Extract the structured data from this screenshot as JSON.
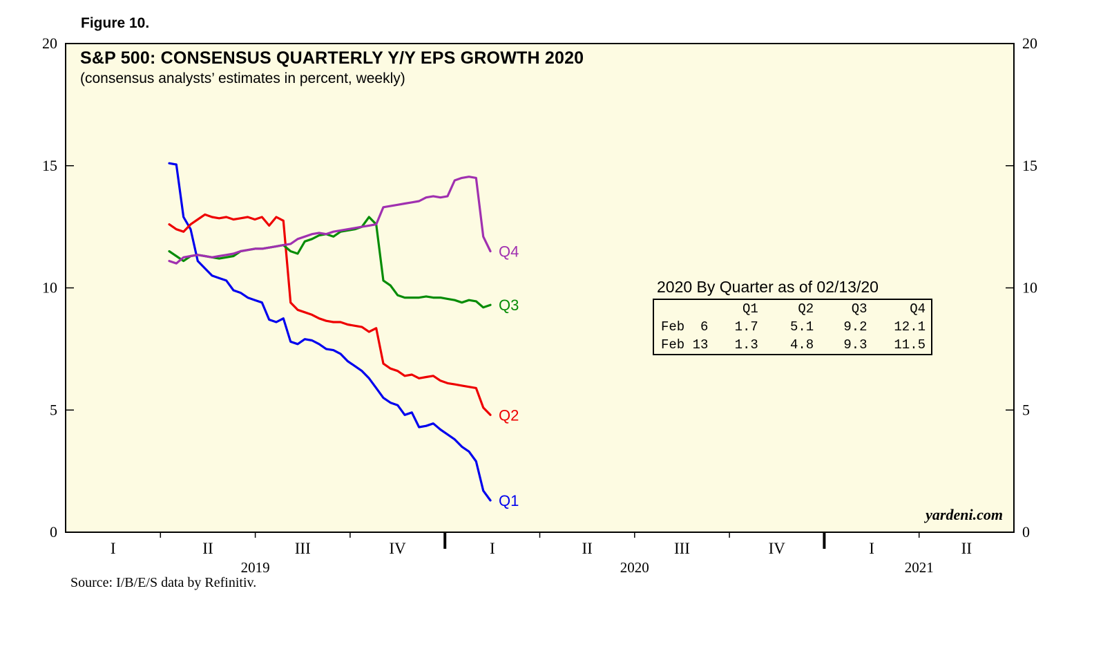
{
  "figure_label": "Figure 10.",
  "chart": {
    "title": "S&P 500: CONSENSUS QUARTERLY Y/Y EPS GROWTH 2020",
    "subtitle": "(consensus analysts’ estimates in percent, weekly)",
    "watermark": "yardeni.com",
    "source": "Source: I/B/E/S data by Refinitiv.",
    "plot_background": "#FDFBE2",
    "axis_color": "#000000"
  },
  "chart_data": {
    "type": "line",
    "title": "S&P 500: CONSENSUS QUARTERLY Y/Y EPS GROWTH 2020",
    "subtitle": "(consensus analysts’ estimates in percent, weekly)",
    "ylabel": "",
    "ylim": [
      0,
      20
    ],
    "yticks": [
      0,
      5,
      10,
      15,
      20
    ],
    "grid": false,
    "legend_position": "end-of-line-labels",
    "x_axis": {
      "quarter_labels": [
        "I",
        "II",
        "III",
        "IV",
        "I",
        "II",
        "III",
        "IV",
        "I",
        "II"
      ],
      "year_labels": [
        {
          "label": "2019",
          "span": [
            0,
            4
          ]
        },
        {
          "label": "2020",
          "span": [
            4,
            8
          ]
        },
        {
          "label": "2021",
          "span": [
            8,
            10
          ]
        }
      ]
    },
    "x_unit": "weekly observations, Apr 2019 through Feb 13 2020",
    "series": [
      {
        "name": "Q1",
        "color": "#0000EE",
        "values": [
          15.1,
          15.05,
          12.9,
          12.4,
          11.1,
          10.8,
          10.5,
          10.4,
          10.3,
          9.9,
          9.8,
          9.6,
          9.5,
          9.4,
          8.7,
          8.6,
          8.75,
          7.8,
          7.7,
          7.9,
          7.85,
          7.7,
          7.5,
          7.45,
          7.3,
          7.0,
          6.8,
          6.6,
          6.3,
          5.9,
          5.5,
          5.3,
          5.2,
          4.8,
          4.9,
          4.3,
          4.35,
          4.45,
          4.2,
          4.0,
          3.8,
          3.5,
          3.3,
          2.9,
          1.7,
          1.3
        ]
      },
      {
        "name": "Q2",
        "color": "#EE0000",
        "values": [
          12.6,
          12.4,
          12.3,
          12.6,
          12.8,
          13.0,
          12.9,
          12.85,
          12.9,
          12.8,
          12.85,
          12.9,
          12.8,
          12.9,
          12.55,
          12.9,
          12.75,
          9.4,
          9.1,
          9.0,
          8.9,
          8.75,
          8.65,
          8.6,
          8.6,
          8.5,
          8.45,
          8.4,
          8.2,
          8.35,
          6.9,
          6.7,
          6.6,
          6.4,
          6.45,
          6.3,
          6.35,
          6.4,
          6.2,
          6.1,
          6.05,
          6.0,
          5.95,
          5.9,
          5.1,
          4.8
        ]
      },
      {
        "name": "Q3",
        "color": "#068C06",
        "values": [
          11.5,
          11.3,
          11.1,
          11.3,
          11.35,
          11.3,
          11.25,
          11.2,
          11.25,
          11.3,
          11.5,
          11.55,
          11.6,
          11.6,
          11.65,
          11.7,
          11.75,
          11.5,
          11.4,
          11.9,
          12.0,
          12.15,
          12.2,
          12.1,
          12.3,
          12.35,
          12.4,
          12.5,
          12.9,
          12.6,
          10.3,
          10.1,
          9.7,
          9.6,
          9.6,
          9.6,
          9.65,
          9.6,
          9.6,
          9.55,
          9.5,
          9.4,
          9.5,
          9.45,
          9.2,
          9.3
        ]
      },
      {
        "name": "Q4",
        "color": "#A030B0",
        "values": [
          11.1,
          11.0,
          11.25,
          11.3,
          11.35,
          11.3,
          11.25,
          11.3,
          11.35,
          11.4,
          11.5,
          11.55,
          11.6,
          11.6,
          11.65,
          11.7,
          11.75,
          11.8,
          12.0,
          12.1,
          12.2,
          12.25,
          12.2,
          12.3,
          12.35,
          12.4,
          12.45,
          12.5,
          12.55,
          12.6,
          13.3,
          13.35,
          13.4,
          13.45,
          13.5,
          13.55,
          13.7,
          13.75,
          13.7,
          13.75,
          14.4,
          14.5,
          14.55,
          14.5,
          12.1,
          11.5
        ]
      }
    ]
  },
  "table": {
    "heading": "2020 By Quarter as of 02/13/20",
    "columns": [
      "Q1",
      "Q2",
      "Q3",
      "Q4"
    ],
    "rows": [
      {
        "label": "Feb  6",
        "values": [
          "1.7",
          "5.1",
          "9.2",
          "12.1"
        ]
      },
      {
        "label": "Feb 13",
        "values": [
          "1.3",
          "4.8",
          "9.3",
          "11.5"
        ]
      }
    ]
  }
}
